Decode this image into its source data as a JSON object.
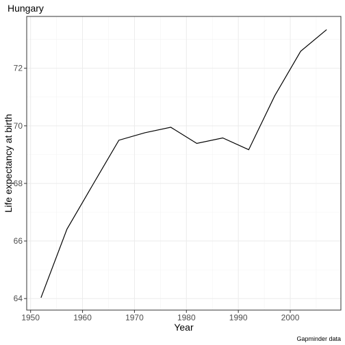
{
  "chart_data": {
    "type": "line",
    "title": "Hungary",
    "xlabel": "Year",
    "ylabel": "Life expectancy at birth",
    "caption": "Gapminder data",
    "x": [
      1952,
      1957,
      1962,
      1967,
      1972,
      1977,
      1982,
      1987,
      1992,
      1997,
      2002,
      2007
    ],
    "series": [
      {
        "values": [
          64.03,
          66.41,
          67.96,
          69.5,
          69.76,
          69.95,
          69.39,
          69.58,
          69.17,
          71.04,
          72.59,
          73.34
        ]
      }
    ],
    "xlim": [
      1949.25,
      2009.75
    ],
    "ylim": [
      63.6,
      73.8
    ],
    "x_ticks": [
      1950,
      1960,
      1970,
      1980,
      1990,
      2000
    ],
    "x_tick_labels": [
      "1950",
      "1960",
      "1970",
      "1980",
      "1990",
      "2000"
    ],
    "y_ticks": [
      64,
      66,
      68,
      70,
      72
    ],
    "y_tick_labels": [
      "64",
      "66",
      "68",
      "70",
      "72"
    ],
    "grid": true,
    "line_color": "#000000"
  }
}
